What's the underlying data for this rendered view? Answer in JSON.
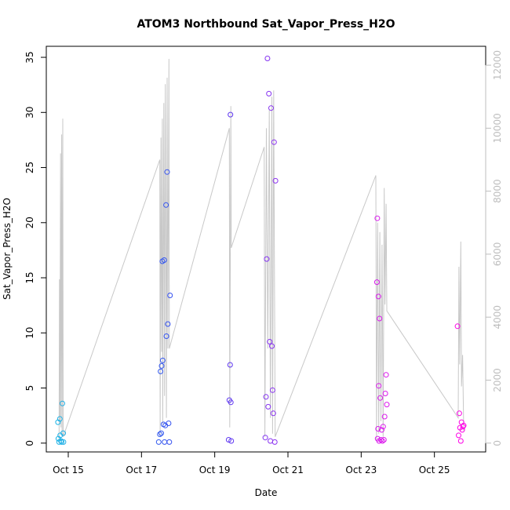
{
  "chart_data": {
    "type": "scatter",
    "title": "ATOM3 Northbound Sat_Vapor_Press_H2O",
    "xlabel": "Date",
    "ylabel": "Sat_Vapor_Press_H2O",
    "x_axis": {
      "unit": "day of October",
      "range": [
        14.4,
        26.4
      ],
      "ticks": [
        15,
        17,
        19,
        21,
        23,
        25
      ],
      "tick_labels": [
        "Oct 15",
        "Oct 17",
        "Oct 19",
        "Oct 21",
        "Oct 23",
        "Oct 25"
      ]
    },
    "y_axis_left": {
      "range": [
        -0.8,
        36.0
      ],
      "ticks": [
        0,
        5,
        10,
        15,
        20,
        25,
        30,
        35
      ],
      "tick_labels": [
        "0",
        "5",
        "10",
        "15",
        "20",
        "25",
        "30",
        "35"
      ]
    },
    "y_axis_right": {
      "color": "#bdbdbd",
      "range": [
        -280,
        12600
      ],
      "ticks": [
        0,
        2000,
        4000,
        6000,
        8000,
        10000,
        12000
      ],
      "tick_labels": [
        "0",
        "2000",
        "4000",
        "6000",
        "8000",
        "10000",
        "12000"
      ]
    },
    "grid": false,
    "legend": "none",
    "color_gradient": [
      "#1fb4e6",
      "#3a3cf2",
      "#c22cf0",
      "#ff00e6"
    ],
    "background_line": {
      "axis": "right",
      "color": "#c8c8c8",
      "points": [
        [
          14.75,
          0
        ],
        [
          14.76,
          5200
        ],
        [
          14.77,
          700
        ],
        [
          14.79,
          9200
        ],
        [
          14.8,
          500
        ],
        [
          14.82,
          9800
        ],
        [
          14.83,
          300
        ],
        [
          14.85,
          10300
        ],
        [
          14.86,
          200
        ],
        [
          17.5,
          9000
        ],
        [
          17.51,
          200
        ],
        [
          17.53,
          9700
        ],
        [
          17.55,
          2900
        ],
        [
          17.57,
          10300
        ],
        [
          17.58,
          600
        ],
        [
          17.61,
          10800
        ],
        [
          17.63,
          1500
        ],
        [
          17.65,
          11400
        ],
        [
          17.68,
          800
        ],
        [
          17.7,
          11600
        ],
        [
          17.72,
          3000
        ],
        [
          17.75,
          12200
        ],
        [
          17.76,
          3000
        ],
        [
          19.4,
          10000
        ],
        [
          19.41,
          500
        ],
        [
          19.44,
          10700
        ],
        [
          19.45,
          6200
        ],
        [
          20.35,
          9400
        ],
        [
          20.37,
          200
        ],
        [
          20.41,
          10000
        ],
        [
          20.45,
          3000
        ],
        [
          20.49,
          10600
        ],
        [
          20.52,
          800
        ],
        [
          20.56,
          11000
        ],
        [
          20.58,
          300
        ],
        [
          20.61,
          11200
        ],
        [
          20.65,
          200
        ],
        [
          23.4,
          8500
        ],
        [
          23.42,
          100
        ],
        [
          23.45,
          7000
        ],
        [
          23.48,
          300
        ],
        [
          23.51,
          6700
        ],
        [
          23.54,
          700
        ],
        [
          23.57,
          6300
        ],
        [
          23.6,
          200
        ],
        [
          23.63,
          8100
        ],
        [
          23.65,
          4400
        ],
        [
          23.68,
          7600
        ],
        [
          23.7,
          4200
        ],
        [
          25.65,
          800
        ],
        [
          25.67,
          5600
        ],
        [
          25.69,
          2500
        ],
        [
          25.72,
          6400
        ],
        [
          25.74,
          1800
        ],
        [
          25.77,
          2800
        ],
        [
          25.8,
          400
        ]
      ]
    },
    "series": [
      {
        "x": [
          14.72,
          14.73,
          14.75,
          14.77,
          14.78,
          14.8,
          14.82,
          14.84,
          14.86,
          14.87
        ],
        "y": [
          1.9,
          0.4,
          0.1,
          2.2,
          0.7,
          0.2,
          0.1,
          3.6,
          0.9,
          0.1
        ]
      },
      {
        "x": [
          17.47,
          17.5,
          17.52,
          17.54,
          17.55,
          17.57,
          17.58,
          17.6,
          17.62,
          17.63,
          17.65,
          17.67,
          17.68,
          17.7,
          17.72,
          17.74,
          17.76,
          17.78
        ],
        "y": [
          0.1,
          0.8,
          6.5,
          0.9,
          7.0,
          16.5,
          7.5,
          1.7,
          16.6,
          0.1,
          1.6,
          21.6,
          9.7,
          24.6,
          10.8,
          1.8,
          0.1,
          13.4
        ]
      },
      {
        "x": [
          19.38,
          19.4,
          19.42,
          19.43,
          19.44,
          19.45
        ],
        "y": [
          0.3,
          3.9,
          7.1,
          29.8,
          3.7,
          0.2
        ]
      },
      {
        "x": [
          20.38,
          20.4,
          20.42,
          20.44,
          20.46,
          20.48,
          20.5,
          20.52,
          20.54,
          20.56,
          20.58,
          20.6,
          20.62,
          20.64,
          20.66
        ],
        "y": [
          0.5,
          4.2,
          16.7,
          34.9,
          3.3,
          31.7,
          9.2,
          0.2,
          30.4,
          8.8,
          4.8,
          2.7,
          27.3,
          0.1,
          23.8
        ]
      },
      {
        "x": [
          23.43,
          23.44,
          23.45,
          23.46,
          23.47,
          23.48,
          23.49,
          23.5,
          23.52,
          23.54,
          23.56,
          23.58,
          23.6,
          23.62,
          23.64,
          23.66,
          23.68,
          23.7
        ],
        "y": [
          14.6,
          20.4,
          0.4,
          1.3,
          13.3,
          5.2,
          0.2,
          11.3,
          4.1,
          0.3,
          1.2,
          0.2,
          1.5,
          0.3,
          2.4,
          4.5,
          6.2,
          3.5
        ]
      },
      {
        "x": [
          25.63,
          25.66,
          25.68,
          25.7,
          25.72,
          25.74,
          25.76,
          25.78,
          25.8
        ],
        "y": [
          10.6,
          0.7,
          2.7,
          1.4,
          0.2,
          1.9,
          1.2,
          1.5,
          1.6
        ]
      }
    ]
  }
}
